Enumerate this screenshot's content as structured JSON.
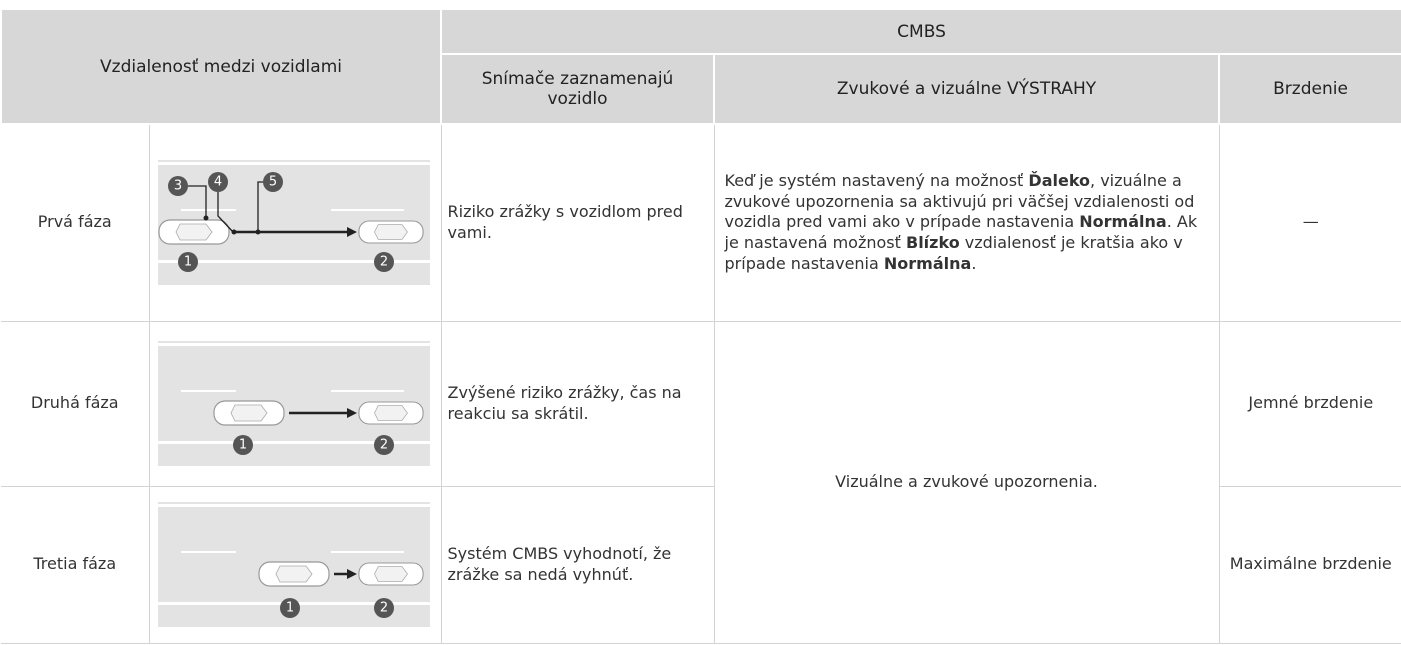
{
  "header": {
    "group_title": "Vzdialenosť medzi vozidlami",
    "cmbs": "CMBS",
    "columns": [
      "Snímače zaznamenajú vozidlo",
      "Zvukové a vizuálne VÝSTRAHY",
      "Brzdenie"
    ]
  },
  "rows": [
    {
      "phase": "Prvá fáza",
      "markers": [
        "3",
        "4",
        "5",
        "1",
        "2"
      ],
      "detection": "Riziko zrážky s vozidlom pred vami.",
      "warning": [
        {
          "text": "Keď je systém nastavený na možnosť ",
          "bold": false
        },
        {
          "text": "Ďaleko",
          "bold": true
        },
        {
          "text": ", vizuálne a zvukové upozornenia sa aktivujú pri väčšej vzdialenosti od vozidla pred vami ako v prípade nastavenia ",
          "bold": false
        },
        {
          "text": "Normálna",
          "bold": true
        },
        {
          "text": ". Ak je nastavená možnosť ",
          "bold": false
        },
        {
          "text": "Blízko",
          "bold": true
        },
        {
          "text": " vzdialenosť je kratšia ako v prípade nastavenia ",
          "bold": false
        },
        {
          "text": "Normálna",
          "bold": true
        },
        {
          "text": ".",
          "bold": false
        }
      ],
      "braking": "—"
    },
    {
      "phase": "Druhá fáza",
      "markers": [
        "1",
        "2"
      ],
      "detection": "Zvýšené riziko zrážky, čas na reakciu sa skrátil.",
      "braking": "Jemné brzdenie"
    },
    {
      "phase": "Tretia fáza",
      "markers": [
        "1",
        "2"
      ],
      "detection": "Systém CMBS vyhodnotí, že zrážke sa nedá vyhnúť.",
      "braking": "Maximálne brzdenie"
    }
  ],
  "shared_warning": "Vizuálne a zvukové upozornenia."
}
